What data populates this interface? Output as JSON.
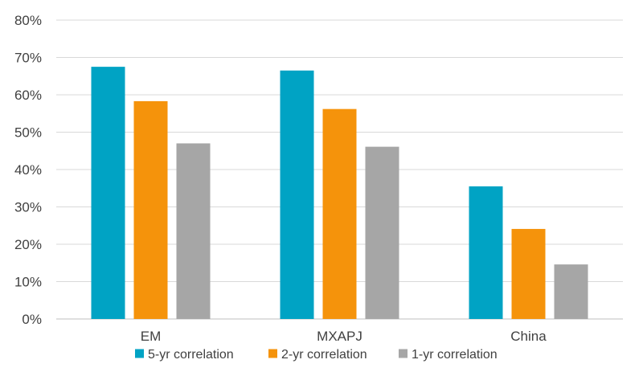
{
  "chart_data": {
    "type": "bar",
    "title": "",
    "xlabel": "",
    "ylabel": "",
    "categories": [
      "EM",
      "MXAPJ",
      "China"
    ],
    "series": [
      {
        "name": "5-yr correlation",
        "color": "#00A3C4",
        "values": [
          67.5,
          66.5,
          35.5
        ]
      },
      {
        "name": "2-yr correlation",
        "color": "#F5930B",
        "values": [
          58.3,
          56.2,
          24.1
        ]
      },
      {
        "name": "1-yr correlation",
        "color": "#A6A6A6",
        "values": [
          47.0,
          46.1,
          14.6
        ]
      }
    ],
    "ylim": [
      0,
      80
    ],
    "yticks": [
      0,
      10,
      20,
      30,
      40,
      50,
      60,
      70,
      80
    ],
    "ytick_labels": [
      "0%",
      "10%",
      "20%",
      "30%",
      "40%",
      "50%",
      "60%",
      "70%",
      "80%"
    ],
    "grid": true,
    "legend_position": "bottom"
  }
}
